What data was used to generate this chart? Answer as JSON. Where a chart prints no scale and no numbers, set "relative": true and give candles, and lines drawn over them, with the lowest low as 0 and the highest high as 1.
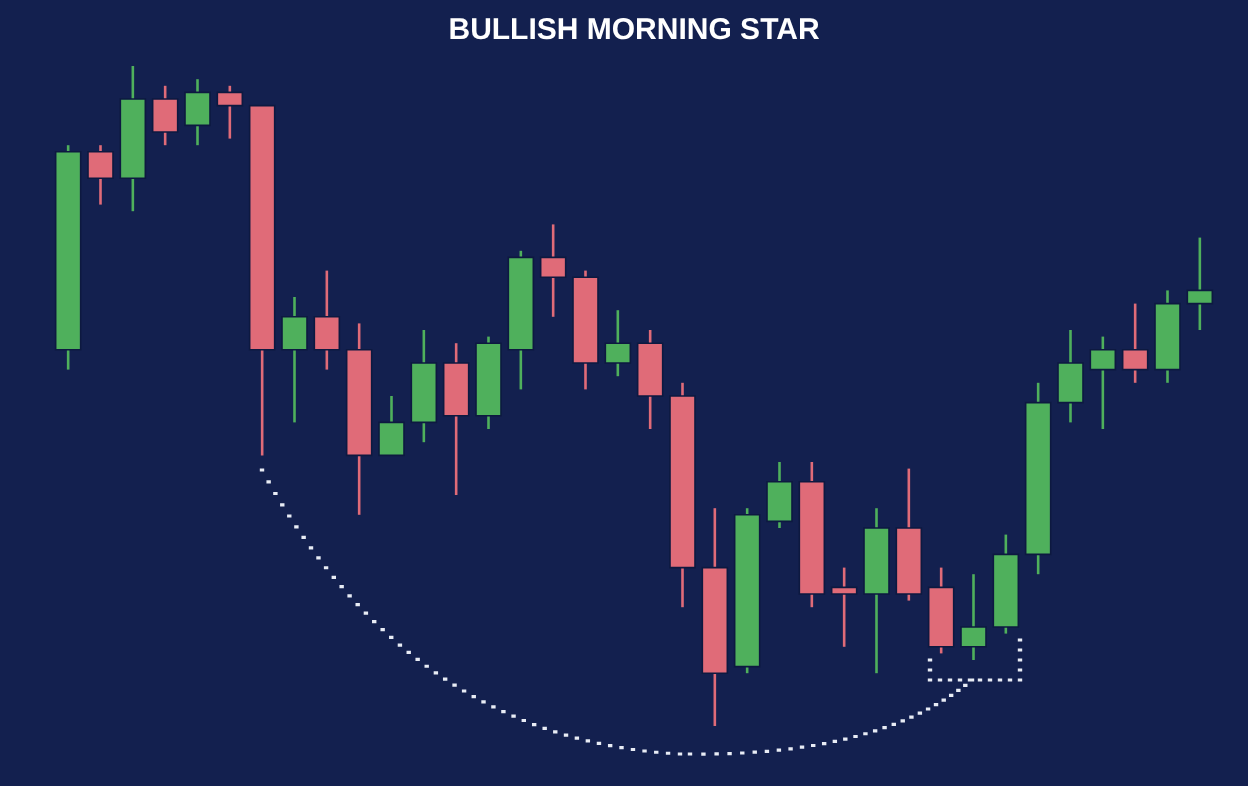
{
  "chart_data": {
    "type": "candlestick",
    "title": "BULLISH MORNING STAR",
    "relative": true,
    "categories": [
      null,
      null,
      null,
      null,
      null,
      null,
      null,
      null,
      null,
      null,
      null,
      null,
      null,
      null,
      null,
      null,
      null,
      null,
      null,
      null,
      null,
      null,
      null,
      null,
      null,
      null,
      null,
      null,
      null,
      null,
      null,
      null,
      null,
      null,
      null,
      null
    ],
    "ohlc": [
      [
        0.57,
        0.88,
        0.54,
        0.87
      ],
      [
        0.87,
        0.88,
        0.79,
        0.83
      ],
      [
        0.83,
        1,
        0.78,
        0.95
      ],
      [
        0.95,
        0.97,
        0.88,
        0.9
      ],
      [
        0.91,
        0.98,
        0.88,
        0.96
      ],
      [
        0.96,
        0.97,
        0.89,
        0.94
      ],
      [
        0.94,
        0.94,
        0.41,
        0.57
      ],
      [
        0.57,
        0.65,
        0.46,
        0.62
      ],
      [
        0.62,
        0.69,
        0.54,
        0.57
      ],
      [
        0.57,
        0.61,
        0.32,
        0.41
      ],
      [
        0.41,
        0.5,
        0.41,
        0.46
      ],
      [
        0.46,
        0.6,
        0.43,
        0.55
      ],
      [
        0.55,
        0.58,
        0.35,
        0.47
      ],
      [
        0.47,
        0.59,
        0.45,
        0.58
      ],
      [
        0.57,
        0.72,
        0.51,
        0.71
      ],
      [
        0.71,
        0.76,
        0.62,
        0.68
      ],
      [
        0.68,
        0.69,
        0.51,
        0.55
      ],
      [
        0.55,
        0.63,
        0.53,
        0.58
      ],
      [
        0.58,
        0.6,
        0.45,
        0.5
      ],
      [
        0.5,
        0.52,
        0.18,
        0.24
      ],
      [
        0.24,
        0.33,
        0,
        0.08
      ],
      [
        0.09,
        0.33,
        0.08,
        0.32
      ],
      [
        0.31,
        0.4,
        0.3,
        0.37
      ],
      [
        0.37,
        0.4,
        0.18,
        0.2
      ],
      [
        0.21,
        0.24,
        0.12,
        0.2
      ],
      [
        0.2,
        0.33,
        0.08,
        0.3
      ],
      [
        0.3,
        0.39,
        0.19,
        0.2
      ],
      [
        0.21,
        0.24,
        0.11,
        0.12
      ],
      [
        0.12,
        0.23,
        0.1,
        0.15
      ],
      [
        0.15,
        0.29,
        0.14,
        0.26
      ],
      [
        0.26,
        0.52,
        0.23,
        0.49
      ],
      [
        0.49,
        0.6,
        0.46,
        0.55
      ],
      [
        0.54,
        0.59,
        0.45,
        0.57
      ],
      [
        0.57,
        0.64,
        0.52,
        0.54
      ],
      [
        0.54,
        0.66,
        0.52,
        0.64
      ],
      [
        0.64,
        0.74,
        0.6,
        0.66
      ]
    ],
    "colors": [
      "#4fb05c",
      "#e06b78",
      "#4fb05c",
      "#e06b78",
      "#4fb05c",
      "#e06b78",
      "#e06b78",
      "#4fb05c",
      "#e06b78",
      "#e06b78",
      "#4fb05c",
      "#4fb05c",
      "#e06b78",
      "#4fb05c",
      "#4fb05c",
      "#e06b78",
      "#e06b78",
      "#4fb05c",
      "#e06b78",
      "#e06b78",
      "#e06b78",
      "#4fb05c",
      "#4fb05c",
      "#e06b78",
      "#e06b78",
      "#4fb05c",
      "#e06b78",
      "#e06b78",
      "#4fb05c",
      "#4fb05c",
      "#4fb05c",
      "#4fb05c",
      "#4fb05c",
      "#e06b78",
      "#4fb05c",
      "#4fb05c"
    ]
  }
}
